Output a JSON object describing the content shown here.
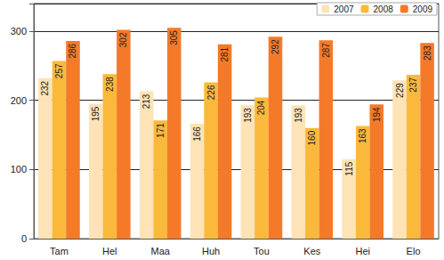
{
  "chart_data": {
    "type": "bar",
    "categories": [
      "Tam",
      "Hel",
      "Maa",
      "Huh",
      "Tou",
      "Kes",
      "Hei",
      "Elo"
    ],
    "series": [
      {
        "name": "2007",
        "color": "#fde3b5",
        "values": [
          232,
          195,
          213,
          166,
          193,
          193,
          115,
          229
        ]
      },
      {
        "name": "2008",
        "color": "#fbb93c",
        "values": [
          257,
          238,
          171,
          226,
          204,
          160,
          163,
          237
        ]
      },
      {
        "name": "2009",
        "color": "#f47a2a",
        "values": [
          286,
          302,
          305,
          281,
          292,
          287,
          194,
          283
        ]
      }
    ],
    "ylim": [
      0,
      340
    ],
    "yticks": [
      0,
      100,
      200,
      300
    ],
    "grid": true,
    "legend": "upper right",
    "data_labels": true
  }
}
